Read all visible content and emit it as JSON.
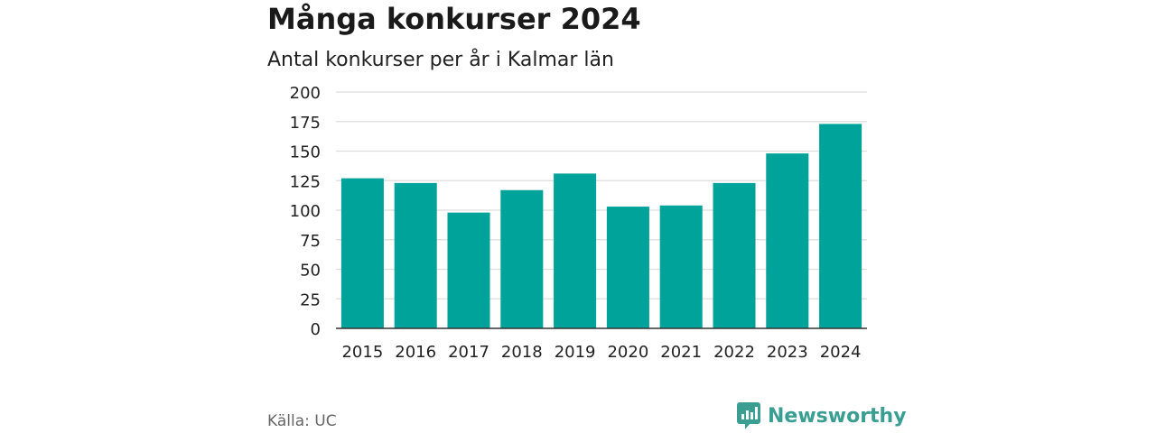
{
  "header": {
    "title": "Många konkurser 2024",
    "subtitle": "Antal konkurser per år i Kalmar län"
  },
  "footer": {
    "source": "Källa: UC",
    "brand": "Newsworthy",
    "brand_icon": "newsworthy-logo-icon"
  },
  "colors": {
    "bar": "#00a39a",
    "grid": "#dddddd",
    "axis": "#333333",
    "brand": "#3a9e92"
  },
  "chart_data": {
    "type": "bar",
    "title": "Många konkurser 2024",
    "subtitle": "Antal konkurser per år i Kalmar län",
    "xlabel": "",
    "ylabel": "",
    "categories": [
      "2015",
      "2016",
      "2017",
      "2018",
      "2019",
      "2020",
      "2021",
      "2022",
      "2023",
      "2024"
    ],
    "values": [
      127,
      123,
      98,
      117,
      131,
      103,
      104,
      123,
      148,
      173
    ],
    "ylim": [
      0,
      200
    ],
    "yticks": [
      0,
      25,
      50,
      75,
      100,
      125,
      150,
      175,
      200
    ],
    "grid": true,
    "legend": "none"
  }
}
